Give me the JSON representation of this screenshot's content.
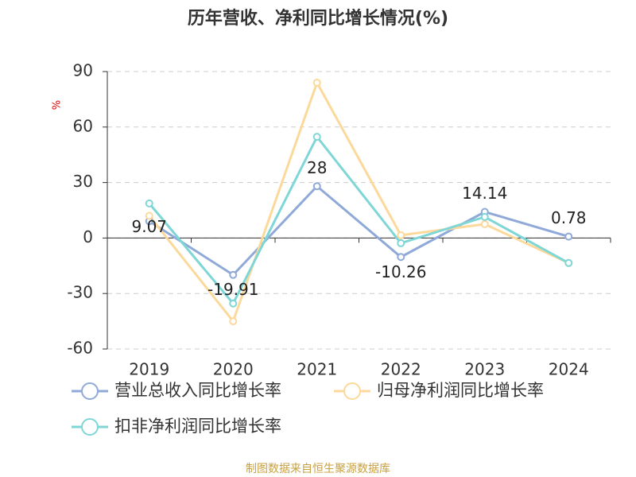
{
  "chart_data": {
    "type": "line",
    "title": "历年营收、净利同比增长情况(%)",
    "y_label": "%",
    "categories": [
      "2019",
      "2020",
      "2021",
      "2022",
      "2023",
      "2024"
    ],
    "series": [
      {
        "name": "营业总收入同比增长率",
        "color": "#8fa9d8",
        "values": [
          9.07,
          -19.91,
          28,
          -10.26,
          14.14,
          0.78
        ],
        "data_labels": true
      },
      {
        "name": "归母净利润同比增长率",
        "color": "#fcd99a",
        "values": [
          12,
          -45,
          84,
          1.5,
          7.5,
          -13.5
        ],
        "data_labels": false
      },
      {
        "name": "扣非净利润同比增长率",
        "color": "#7fd6d6",
        "values": [
          18.7,
          -35.4,
          54.7,
          -2.8,
          11.4,
          -13.5
        ],
        "data_labels": false
      }
    ],
    "ylim": [
      -60,
      90
    ],
    "yticks": [
      -60,
      -30,
      0,
      30,
      60,
      90
    ],
    "grid": true,
    "legend": "bottom",
    "source": "制图数据来自恒生聚源数据库"
  }
}
